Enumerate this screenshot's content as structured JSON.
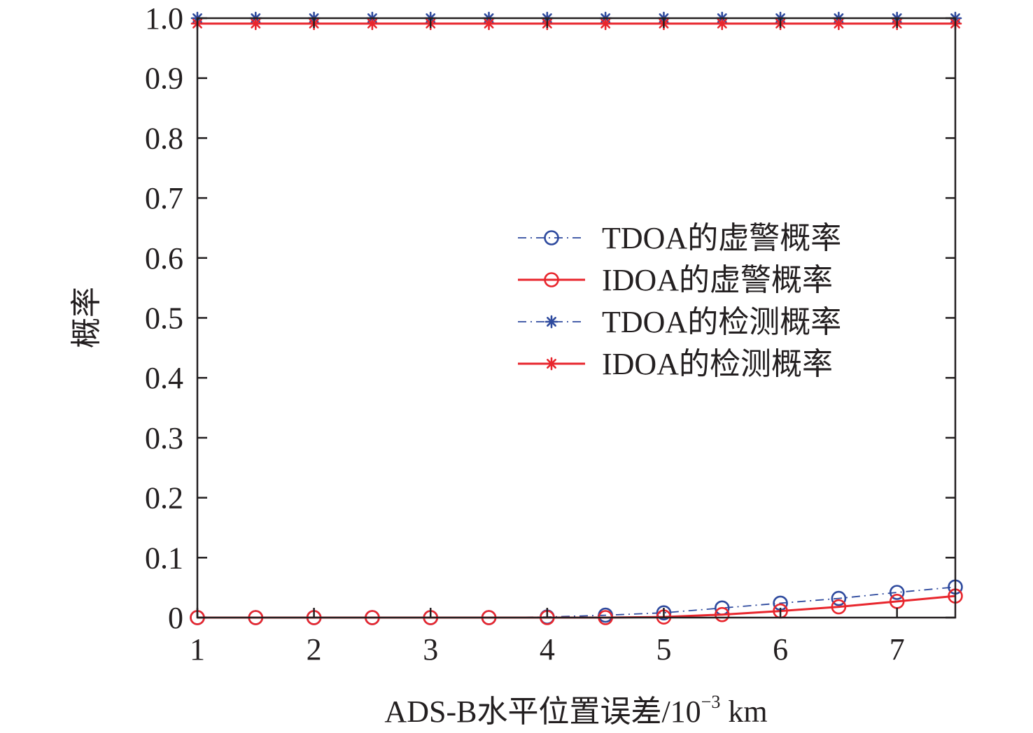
{
  "chart_data": {
    "type": "line",
    "title": "",
    "xlabel": "ADS-B水平位置误差/10",
    "xlabel_sup": "−3",
    "xlabel_unit": " km",
    "ylabel": "概率",
    "xlim": [
      1,
      7.5
    ],
    "ylim": [
      0,
      1
    ],
    "xticks": [
      "1",
      "2",
      "3",
      "4",
      "5",
      "6",
      "7"
    ],
    "yticks": [
      "0",
      "0.1",
      "0.2",
      "0.3",
      "0.4",
      "0.5",
      "0.6",
      "0.7",
      "0.8",
      "0.9",
      "1.0"
    ],
    "x": [
      1,
      1.5,
      2,
      2.5,
      3,
      3.5,
      4,
      4.5,
      5,
      5.5,
      6,
      6.5,
      7,
      7.5
    ],
    "grid": false,
    "legend_position": "center-right",
    "series": [
      {
        "name": "TDOA的虚警概率",
        "color": "#2e4a9e",
        "marker": "circle",
        "line": "dashdot",
        "values": [
          0,
          0,
          0,
          0,
          0,
          0,
          0.001,
          0.004,
          0.008,
          0.016,
          0.024,
          0.032,
          0.042,
          0.051
        ]
      },
      {
        "name": "IDOA的虚警概率",
        "color": "#e8262d",
        "marker": "circle",
        "line": "solid",
        "values": [
          0,
          0,
          0,
          0,
          0,
          0,
          0,
          0,
          0.001,
          0.005,
          0.011,
          0.018,
          0.027,
          0.036
        ]
      },
      {
        "name": "TDOA的检测概率",
        "color": "#2e4a9e",
        "marker": "asterisk",
        "line": "dashdot",
        "values": [
          1,
          1,
          1,
          1,
          1,
          1,
          1,
          1,
          1,
          1,
          1,
          1,
          1,
          1
        ]
      },
      {
        "name": "IDOA的检测概率",
        "color": "#e8262d",
        "marker": "asterisk",
        "line": "solid",
        "values": [
          0.991,
          0.991,
          0.991,
          0.991,
          0.991,
          0.991,
          0.991,
          0.991,
          0.991,
          0.991,
          0.991,
          0.991,
          0.991,
          0.991
        ]
      }
    ]
  }
}
